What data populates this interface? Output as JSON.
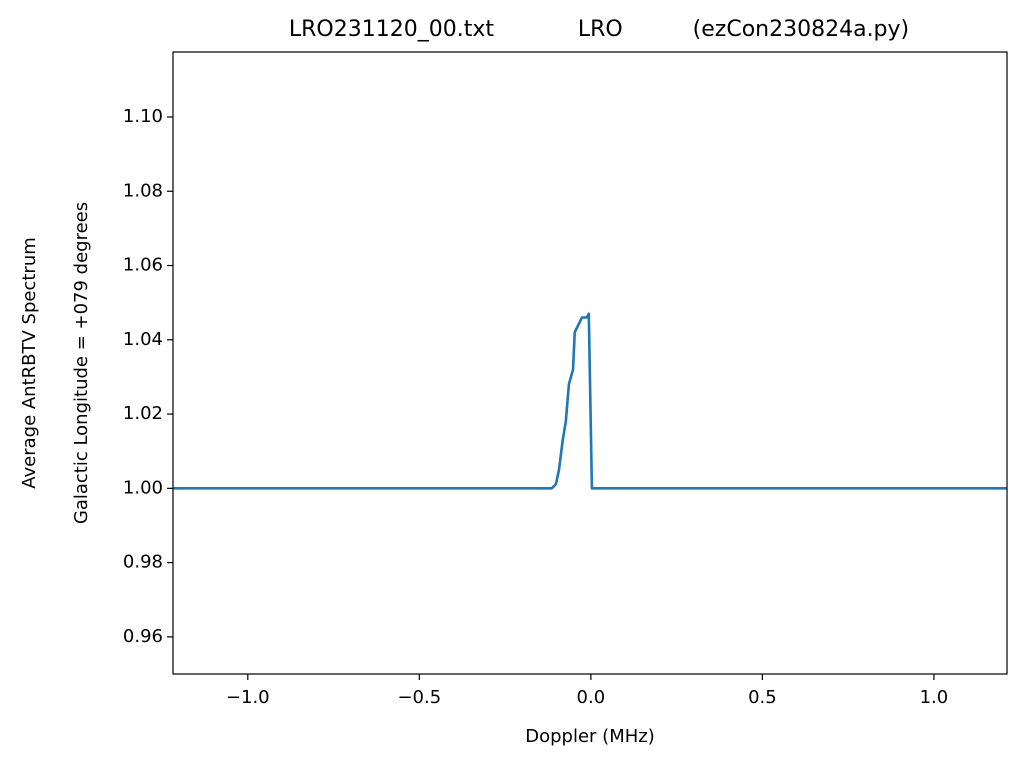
{
  "chart_data": {
    "type": "line",
    "title": "LRO231120_00.txt            LRO          (ezCon230824a.py)",
    "xlabel": "Doppler (MHz)",
    "ylabel": [
      "Average AntRBTV Spectrum",
      "Galactic Longitude = +079 degrees"
    ],
    "x": [
      -1.218,
      -0.114,
      -0.102,
      -0.093,
      -0.082,
      -0.073,
      -0.064,
      -0.052,
      -0.047,
      -0.026,
      -0.017,
      -0.012,
      -0.006,
      0.003,
      1.213
    ],
    "series": [
      {
        "color": "#1f77b4",
        "values": [
          1.0,
          1.0,
          1.0011,
          1.0049,
          1.013,
          1.018,
          1.028,
          1.032,
          1.042,
          1.046,
          1.046,
          1.046,
          1.047,
          1.0,
          1.0
        ]
      }
    ],
    "xlim": [
      -1.218,
      1.213
    ],
    "ylim": [
      0.95,
      1.1175
    ],
    "xticks": [
      {
        "value": -1.0,
        "label": "−1.0"
      },
      {
        "value": -0.5,
        "label": "−0.5"
      },
      {
        "value": 0.0,
        "label": "0.0"
      },
      0.5,
      {
        "value": 1.0,
        "label": "1.0"
      }
    ],
    "yticks": [
      0.96,
      0.98,
      {
        "value": 1.0,
        "label": "1.00"
      },
      1.02,
      1.04,
      1.06,
      1.08,
      {
        "value": 1.1,
        "label": "1.10"
      }
    ],
    "grid": false
  }
}
